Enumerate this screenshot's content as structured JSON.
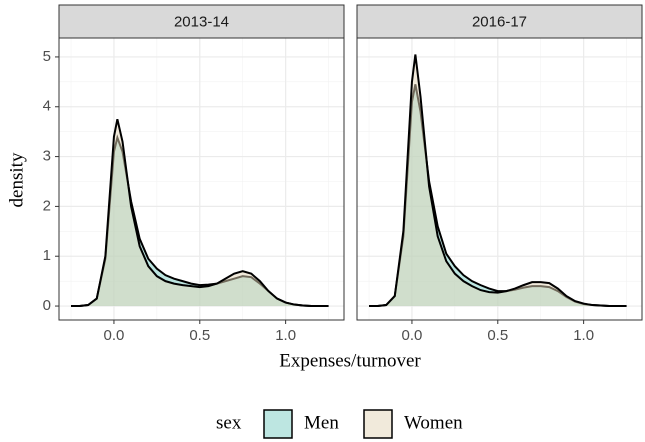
{
  "x_label": "Expenses/turnover",
  "y_label": "density",
  "legend_title": "sex",
  "legend_position": "bottom",
  "chart_data": [
    {
      "type": "area",
      "facet": "2013-14",
      "x": [
        -0.25,
        -0.2,
        -0.15,
        -0.1,
        -0.05,
        0,
        0.02,
        0.05,
        0.1,
        0.15,
        0.2,
        0.25,
        0.3,
        0.35,
        0.4,
        0.45,
        0.5,
        0.55,
        0.6,
        0.65,
        0.7,
        0.75,
        0.8,
        0.85,
        0.9,
        0.95,
        1.0,
        1.05,
        1.1,
        1.15,
        1.2,
        1.25
      ],
      "series": [
        {
          "name": "Men",
          "color": "#7ccdc4",
          "values": [
            0,
            0,
            0.02,
            0.15,
            0.95,
            3.1,
            3.38,
            3.1,
            2.1,
            1.35,
            0.95,
            0.75,
            0.62,
            0.55,
            0.5,
            0.45,
            0.42,
            0.43,
            0.45,
            0.5,
            0.55,
            0.6,
            0.58,
            0.45,
            0.3,
            0.15,
            0.07,
            0.03,
            0.01,
            0,
            0,
            0
          ]
        },
        {
          "name": "Women",
          "color": "#e3d6b8",
          "values": [
            0,
            0,
            0.02,
            0.15,
            1.0,
            3.4,
            3.75,
            3.3,
            2.0,
            1.2,
            0.8,
            0.6,
            0.5,
            0.45,
            0.42,
            0.4,
            0.38,
            0.4,
            0.45,
            0.55,
            0.65,
            0.7,
            0.65,
            0.5,
            0.3,
            0.15,
            0.07,
            0.03,
            0.01,
            0,
            0,
            0
          ]
        }
      ],
      "xlim": [
        -0.32,
        1.34
      ],
      "ylim": [
        -0.28,
        5.38
      ],
      "xticks": [
        {
          "value": 0,
          "label": "0.0"
        },
        {
          "value": 0.5,
          "label": "0.5"
        },
        {
          "value": 1,
          "label": "1.0"
        }
      ],
      "yticks": [
        0,
        1,
        2,
        3,
        4,
        5
      ],
      "grid": true
    },
    {
      "type": "area",
      "facet": "2016-17",
      "x": [
        -0.25,
        -0.2,
        -0.15,
        -0.1,
        -0.05,
        0,
        0.02,
        0.05,
        0.1,
        0.15,
        0.2,
        0.25,
        0.3,
        0.35,
        0.4,
        0.45,
        0.5,
        0.55,
        0.6,
        0.65,
        0.7,
        0.75,
        0.8,
        0.85,
        0.9,
        0.95,
        1.0,
        1.05,
        1.1,
        1.15,
        1.2,
        1.25
      ],
      "series": [
        {
          "name": "Men",
          "color": "#7ccdc4",
          "values": [
            0,
            0,
            0.02,
            0.2,
            1.4,
            4.1,
            4.45,
            3.9,
            2.5,
            1.6,
            1.05,
            0.8,
            0.62,
            0.5,
            0.42,
            0.35,
            0.3,
            0.3,
            0.33,
            0.37,
            0.4,
            0.4,
            0.38,
            0.3,
            0.18,
            0.09,
            0.04,
            0.02,
            0.01,
            0,
            0,
            0
          ]
        },
        {
          "name": "Women",
          "color": "#e3d6b8",
          "values": [
            0,
            0,
            0.02,
            0.2,
            1.5,
            4.5,
            5.05,
            4.2,
            2.4,
            1.4,
            0.9,
            0.65,
            0.5,
            0.4,
            0.32,
            0.28,
            0.27,
            0.3,
            0.35,
            0.42,
            0.48,
            0.48,
            0.46,
            0.35,
            0.2,
            0.1,
            0.05,
            0.02,
            0.01,
            0,
            0,
            0
          ]
        }
      ],
      "xlim": [
        -0.32,
        1.34
      ],
      "ylim": [
        -0.28,
        5.38
      ],
      "xticks": [
        {
          "value": 0,
          "label": "0.0"
        },
        {
          "value": 0.5,
          "label": "0.5"
        },
        {
          "value": 1,
          "label": "1.0"
        }
      ],
      "yticks": [
        0,
        1,
        2,
        3,
        4,
        5
      ],
      "grid": true
    }
  ]
}
